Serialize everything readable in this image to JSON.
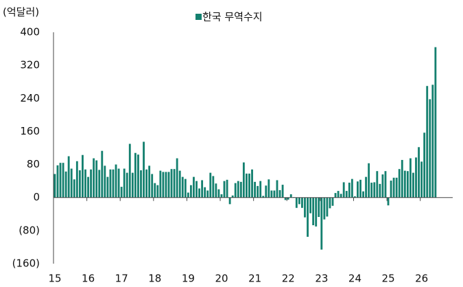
{
  "chart_data": {
    "type": "bar",
    "unit_label": "(억달러)",
    "categories": [
      "15",
      null,
      null,
      null,
      null,
      null,
      null,
      null,
      null,
      null,
      null,
      null,
      "16",
      null,
      null,
      null,
      null,
      null,
      null,
      null,
      null,
      null,
      null,
      null,
      "17",
      null,
      null,
      null,
      null,
      null,
      null,
      null,
      null,
      null,
      null,
      null,
      "18",
      null,
      null,
      null,
      null,
      null,
      null,
      null,
      null,
      null,
      null,
      null,
      "19",
      null,
      null,
      null,
      null,
      null,
      null,
      null,
      null,
      null,
      null,
      null,
      "20",
      null,
      null,
      null,
      null,
      null,
      null,
      null,
      null,
      null,
      null,
      null,
      "21",
      null,
      null,
      null,
      null,
      null,
      null,
      null,
      null,
      null,
      null,
      null,
      "22",
      null,
      null,
      null,
      null,
      null,
      null,
      null,
      null,
      null,
      null,
      null,
      "23",
      null,
      null,
      null,
      null,
      null,
      null,
      null,
      null,
      null,
      null,
      null,
      "24",
      null,
      null,
      null,
      null,
      null,
      null,
      null,
      null,
      null,
      null,
      null,
      "25",
      null,
      null,
      null,
      null,
      null,
      null,
      null,
      null,
      null,
      null,
      null,
      "26",
      null,
      null,
      null,
      null,
      null
    ],
    "series": [
      {
        "name": "한국 무역수지",
        "color": "#14806f",
        "values": [
          57,
          78,
          84,
          84,
          63,
          100,
          70,
          44,
          88,
          66,
          103,
          68,
          50,
          68,
          95,
          90,
          67,
          113,
          77,
          50,
          68,
          68,
          80,
          70,
          26,
          70,
          60,
          130,
          60,
          108,
          104,
          66,
          135,
          68,
          77,
          57,
          35,
          30,
          65,
          62,
          62,
          62,
          69,
          69,
          95,
          65,
          50,
          45,
          12,
          30,
          50,
          40,
          22,
          42,
          25,
          17,
          60,
          52,
          34,
          20,
          8,
          40,
          43,
          -16,
          5,
          35,
          40,
          38,
          85,
          58,
          58,
          68,
          38,
          28,
          40,
          4,
          29,
          44,
          17,
          17,
          42,
          18,
          31,
          -6,
          -5,
          8,
          1,
          -25,
          -16,
          -25,
          -48,
          -95,
          -38,
          -67,
          -70,
          -47,
          -126,
          -53,
          -46,
          -26,
          -20,
          11,
          16,
          9,
          37,
          16,
          36,
          45,
          3,
          39,
          43,
          15,
          50,
          83,
          36,
          37,
          64,
          33,
          56,
          64,
          -19,
          41,
          48,
          48,
          69,
          91,
          65,
          64,
          95,
          60,
          97,
          122,
          87,
          157,
          270,
          238,
          273,
          364
        ]
      }
    ],
    "ylim": [
      -160,
      400
    ],
    "yticks": [
      {
        "value": -160,
        "label": "(160)"
      },
      {
        "value": -80,
        "label": "(80)"
      },
      0,
      80,
      160,
      240,
      320,
      400
    ]
  }
}
